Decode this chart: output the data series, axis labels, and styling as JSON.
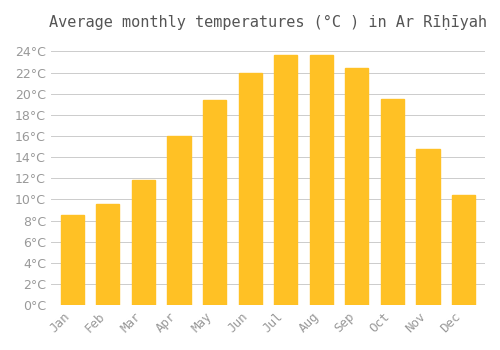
{
  "title": "Average monthly temperatures (°C ) in Ar Rīḥīyah",
  "months": [
    "Jan",
    "Feb",
    "Mar",
    "Apr",
    "May",
    "Jun",
    "Jul",
    "Aug",
    "Sep",
    "Oct",
    "Nov",
    "Dec"
  ],
  "values": [
    8.5,
    9.6,
    11.8,
    16.0,
    19.4,
    22.0,
    23.7,
    23.7,
    22.4,
    19.5,
    14.8,
    10.4
  ],
  "bar_color": "#FFC125",
  "bar_edge_color": "#FFD700",
  "background_color": "#FFFFFF",
  "plot_bg_color": "#FFFFFF",
  "grid_color": "#CCCCCC",
  "text_color": "#999999",
  "title_color": "#555555",
  "ylim": [
    0,
    25
  ],
  "ytick_step": 2,
  "title_fontsize": 11,
  "tick_fontsize": 9,
  "font_family": "monospace"
}
